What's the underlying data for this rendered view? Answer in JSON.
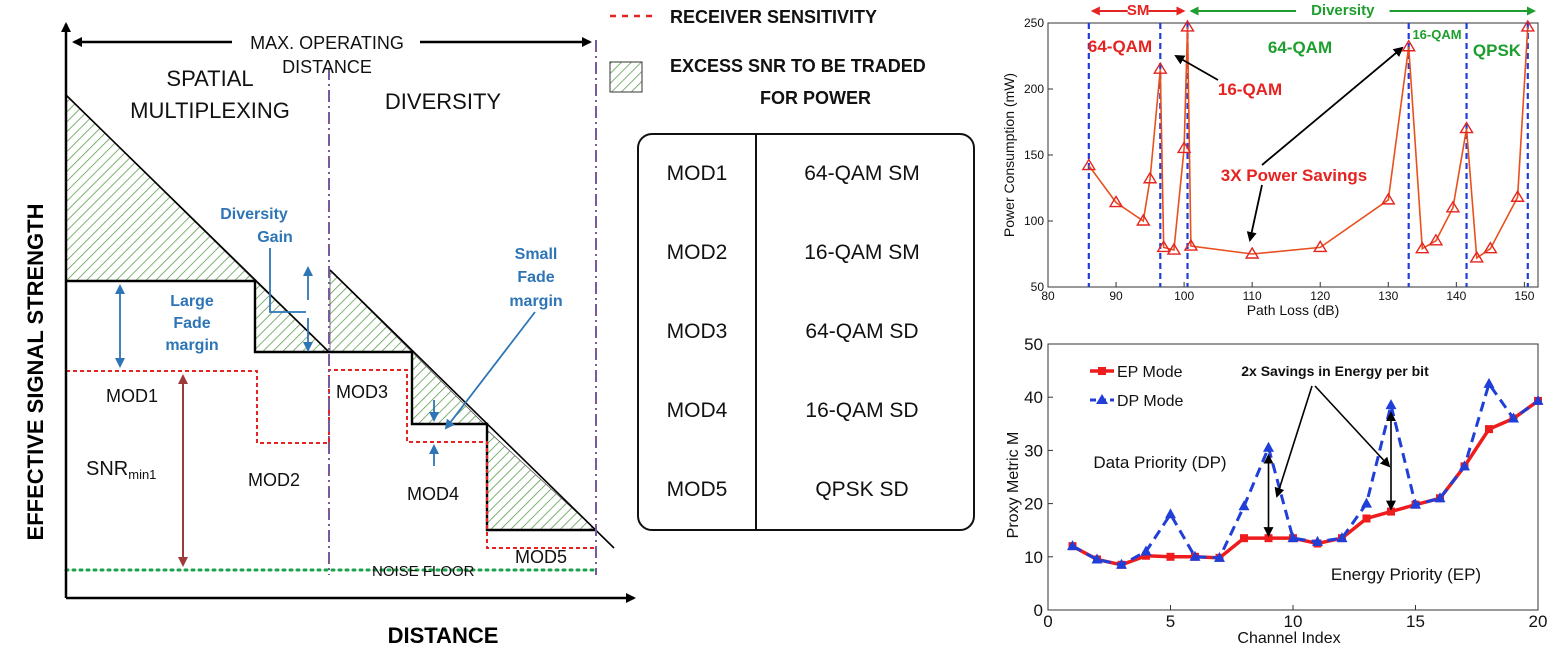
{
  "left_diagram": {
    "y_axis_label": "EFFECTIVE SIGNAL STRENGTH",
    "x_axis_label": "DISTANCE",
    "max_distance_label_1": "MAX. OPERATING",
    "max_distance_label_2": "DISTANCE",
    "region_sm_1": "SPATIAL",
    "region_sm_2": "MULTIPLEXING",
    "region_div": "DIVERSITY",
    "diversity_gain_1": "Diversity",
    "diversity_gain_2": "Gain",
    "large_fade_1": "Large",
    "large_fade_2": "Fade",
    "large_fade_3": "margin",
    "small_fade_1": "Small",
    "small_fade_2": "Fade",
    "small_fade_3": "margin",
    "snr_main": "SNR",
    "snr_sub": "min1",
    "noise_floor": "NOISE FLOOR",
    "mod_labels": [
      "MOD1",
      "MOD2",
      "MOD3",
      "MOD4",
      "MOD5"
    ],
    "colors": {
      "receiver": "#e52421",
      "noise": "#1aa34a",
      "annotation": "#2e75b6",
      "snr_arrow": "#9e3a3a",
      "hatch": "#5f9e4f",
      "divider": "#7a5a9a"
    }
  },
  "legend": {
    "receiver_sensitivity": "RECEIVER SENSITIVITY",
    "excess_snr_1": "EXCESS SNR TO BE TRADED",
    "excess_snr_2": "FOR POWER"
  },
  "mode_table": {
    "rows": [
      {
        "mode": "MOD1",
        "scheme": "64-QAM SM"
      },
      {
        "mode": "MOD2",
        "scheme": "16-QAM SM"
      },
      {
        "mode": "MOD3",
        "scheme": "64-QAM SD"
      },
      {
        "mode": "MOD4",
        "scheme": "16-QAM SD"
      },
      {
        "mode": "MOD5",
        "scheme": "QPSK SD"
      }
    ]
  },
  "chart_data": [
    {
      "type": "line",
      "xlabel": "Path Loss (dB)",
      "ylabel": "Power Consumption (mW)",
      "xlim": [
        80,
        152
      ],
      "ylim": [
        50,
        250
      ],
      "x_ticks": [
        80,
        90,
        100,
        110,
        120,
        130,
        140,
        150
      ],
      "y_ticks": [
        50,
        100,
        150,
        200,
        250
      ],
      "grid": false,
      "series": [
        {
          "color": "#e8501e",
          "marker": "triangle-open",
          "x": [
            86,
            90,
            94,
            95,
            96.5,
            97,
            98.5,
            100,
            100.5,
            101,
            110,
            120,
            130,
            133,
            135,
            137,
            139.5,
            141.5,
            143,
            145,
            149,
            150.5
          ],
          "y": [
            142,
            114,
            100,
            132,
            215,
            80,
            78,
            155,
            247,
            81,
            75,
            80,
            116,
            232,
            79,
            85,
            110,
            170,
            72,
            79,
            118,
            247
          ]
        }
      ],
      "vlines": [
        86,
        96.5,
        100.5,
        133,
        141.5,
        150.5
      ],
      "vline_color": "#1f3fd8",
      "header_arrows": [
        {
          "label": "SM",
          "from": 86,
          "to": 100.5,
          "color": "#e52421"
        },
        {
          "label": "Diversity",
          "from": 100.5,
          "to": 152,
          "color": "#1e9e2e"
        }
      ],
      "annotations": [
        {
          "text": "64-QAM",
          "color": "#e52421"
        },
        {
          "text": "16-QAM",
          "color": "#e52421"
        },
        {
          "text": "64-QAM",
          "color": "#1e9e2e"
        },
        {
          "text": "16-QAM",
          "color": "#1e9e2e"
        },
        {
          "text": "QPSK",
          "color": "#1e9e2e"
        },
        {
          "text": "3X Power Savings",
          "color": "#e52421"
        }
      ]
    },
    {
      "type": "line",
      "xlabel": "Channel Index",
      "ylabel": "Proxy Metric M",
      "xlim": [
        0,
        20
      ],
      "ylim": [
        0,
        50
      ],
      "x_ticks": [
        0,
        5,
        10,
        15,
        20
      ],
      "y_ticks": [
        0,
        10,
        20,
        30,
        40,
        50
      ],
      "grid": false,
      "legend_position": "top-left",
      "series": [
        {
          "name": "EP Mode",
          "color": "#ee1c1c",
          "marker": "square",
          "x": [
            1,
            2,
            3,
            4,
            5,
            6,
            7,
            8,
            9,
            10,
            11,
            12,
            13,
            14,
            15,
            16,
            17,
            18,
            19,
            20
          ],
          "y": [
            12,
            9.5,
            8.5,
            10.2,
            10,
            10,
            9.8,
            13.5,
            13.5,
            13.5,
            12.5,
            13.5,
            17.2,
            18.5,
            19.8,
            21,
            27,
            34,
            36,
            39.3
          ]
        },
        {
          "name": "DP Mode",
          "color": "#1f3fd8",
          "marker": "triangle",
          "x": [
            1,
            2,
            3,
            4,
            5,
            6,
            7,
            8,
            9,
            10,
            11,
            12,
            13,
            14,
            15,
            16,
            17,
            18,
            19,
            20
          ],
          "y": [
            12,
            9.5,
            8.5,
            11,
            18,
            10,
            9.8,
            19.5,
            30.5,
            13.5,
            12.8,
            13.5,
            20,
            38.5,
            19.8,
            21,
            27,
            42.5,
            36,
            39.3
          ]
        }
      ],
      "annotations": [
        {
          "text": "2x Savings in Energy per bit"
        },
        {
          "text": "Data Priority (DP)"
        },
        {
          "text": "Energy Priority (EP)"
        }
      ]
    }
  ]
}
